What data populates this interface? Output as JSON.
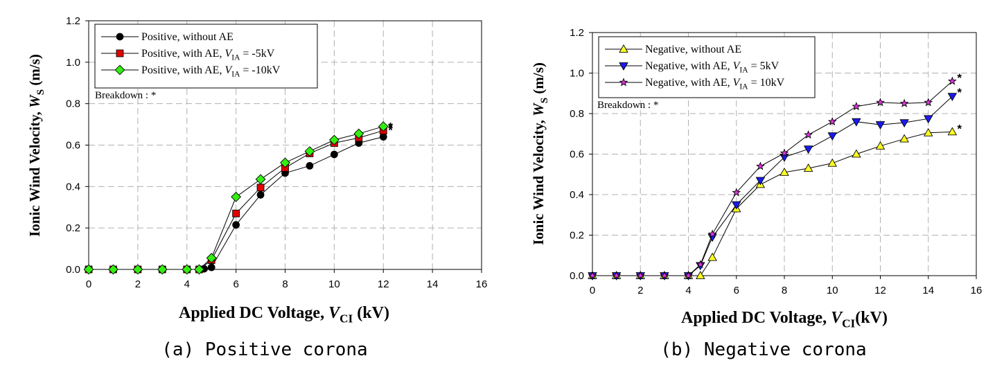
{
  "colors": {
    "black": "#000000",
    "red": "#e00000",
    "green": "#33ee11",
    "yellow": "#ffff22",
    "blue": "#1a1aee",
    "magenta": "#dd33dd",
    "grid": "#b0b0b0"
  },
  "chart_data": [
    {
      "type": "line",
      "caption": "(a) Positive corona",
      "ylabel": "Ionic Wind Velocity, W_S (m/s)",
      "xlabel": "Applied DC Voltage, V_CI (kV)",
      "xlim": [
        0,
        16
      ],
      "ylim": [
        0,
        1.2
      ],
      "xticks": [
        0,
        2,
        4,
        6,
        8,
        10,
        12,
        14,
        16
      ],
      "xtick_labels": [
        "0",
        "2",
        "4",
        "6",
        "8",
        "10",
        "12",
        "14",
        "16"
      ],
      "yticks": [
        0,
        0.2,
        0.4,
        0.6,
        0.8,
        1.0,
        1.2
      ],
      "ytick_labels": [
        "0.0",
        "0.2",
        "0.4",
        "0.6",
        "0.8",
        "1.0",
        "1.2"
      ],
      "grid": true,
      "legend_position": "top-left",
      "annotation": "Breakdown : *",
      "breakdown_marker": "*",
      "series": [
        {
          "name": "Positive,  without AE",
          "marker": "circle",
          "color": "#000000",
          "x": [
            0,
            1,
            2,
            3,
            4,
            4.5,
            4.7,
            5,
            6,
            7,
            8,
            9,
            10,
            11,
            12
          ],
          "y": [
            0,
            0,
            0,
            0,
            0,
            0,
            0.003,
            0.01,
            0.215,
            0.36,
            0.465,
            0.5,
            0.555,
            0.61,
            0.64
          ]
        },
        {
          "name": "Positive,  with AE, V_IA = -5kV",
          "marker": "square",
          "color": "#e00000",
          "x": [
            0,
            1,
            2,
            3,
            4,
            4.5,
            5,
            6,
            7,
            8,
            9,
            10,
            11,
            12
          ],
          "y": [
            0,
            0,
            0,
            0,
            0,
            0,
            0.045,
            0.27,
            0.395,
            0.49,
            0.56,
            0.61,
            0.635,
            0.67
          ]
        },
        {
          "name": "Positive,  with AE, V_IA = -10kV",
          "marker": "diamond",
          "color": "#33ee11",
          "x": [
            0,
            1,
            2,
            3,
            4,
            4.5,
            5,
            6,
            7,
            8,
            9,
            10,
            11,
            12
          ],
          "y": [
            0,
            0,
            0,
            0,
            0,
            0,
            0.055,
            0.35,
            0.435,
            0.515,
            0.57,
            0.625,
            0.655,
            0.69
          ]
        }
      ]
    },
    {
      "type": "line",
      "caption": "(b) Negative corona",
      "ylabel": "Ionic Wind Velocity, W_S (m/s)",
      "xlabel": "Applied DC Voltage, V_CI(kV)",
      "xlim": [
        0,
        16
      ],
      "ylim": [
        0,
        1.2
      ],
      "xticks": [
        0,
        2,
        4,
        6,
        8,
        10,
        12,
        14,
        16
      ],
      "xtick_labels": [
        "0",
        "2",
        "4",
        "6",
        "8",
        "10",
        "12",
        "14",
        "16"
      ],
      "yticks": [
        0,
        0.2,
        0.4,
        0.6,
        0.8,
        1.0,
        1.2
      ],
      "ytick_labels": [
        "0.0",
        "0.2",
        "0.4",
        "0.6",
        "0.8",
        "1.0",
        "1.2"
      ],
      "grid": true,
      "legend_position": "top-left",
      "annotation": "Breakdown : *",
      "breakdown_marker": "*",
      "series": [
        {
          "name": "Negative, without AE",
          "marker": "triangle-up",
          "color": "#ffff22",
          "x": [
            0,
            1,
            2,
            3,
            4,
            4.5,
            5,
            6,
            7,
            8,
            9,
            10,
            11,
            12,
            13,
            14,
            15
          ],
          "y": [
            0,
            0,
            0,
            0,
            0,
            0,
            0.09,
            0.33,
            0.45,
            0.51,
            0.53,
            0.555,
            0.6,
            0.64,
            0.675,
            0.705,
            0.71
          ]
        },
        {
          "name": "Negative, with AE, V_IA = 5kV",
          "marker": "triangle-down",
          "color": "#1a1aee",
          "x": [
            0,
            1,
            2,
            3,
            4,
            4.5,
            5,
            6,
            7,
            8,
            9,
            10,
            11,
            12,
            13,
            14,
            15
          ],
          "y": [
            0,
            0,
            0,
            0,
            0,
            0.05,
            0.19,
            0.35,
            0.47,
            0.585,
            0.625,
            0.69,
            0.76,
            0.745,
            0.755,
            0.775,
            0.885
          ]
        },
        {
          "name": "Negative, with AE, V_IA = 10kV",
          "marker": "star",
          "color": "#dd33dd",
          "x": [
            0,
            1,
            2,
            3,
            4,
            4.5,
            5,
            6,
            7,
            8,
            9,
            10,
            11,
            12,
            13,
            14,
            15
          ],
          "y": [
            0,
            0,
            0,
            0,
            0,
            0.055,
            0.205,
            0.41,
            0.54,
            0.605,
            0.695,
            0.76,
            0.835,
            0.855,
            0.85,
            0.855,
            0.96
          ]
        }
      ]
    }
  ]
}
